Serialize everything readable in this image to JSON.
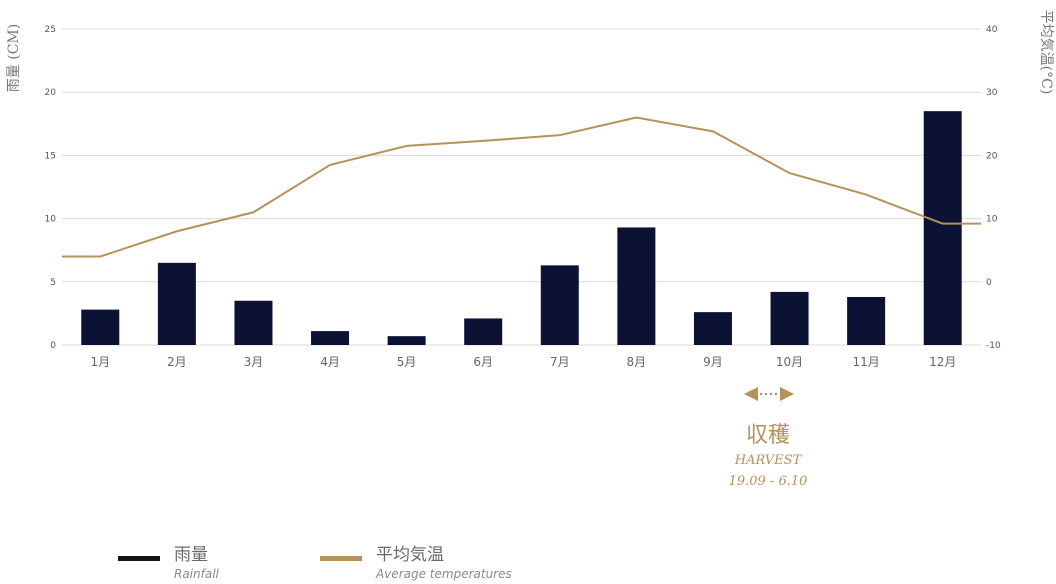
{
  "colors": {
    "bar": "#0b1233",
    "line": "#b5915c",
    "grid": "#d9d9d9",
    "tick": "#555555"
  },
  "chart_data": {
    "type": "bar+line",
    "categories": [
      "1月",
      "2月",
      "3月",
      "4月",
      "5月",
      "6月",
      "7月",
      "8月",
      "9月",
      "10月",
      "11月",
      "12月"
    ],
    "series": [
      {
        "name": "雨量",
        "axis": "left",
        "type": "bar",
        "values": [
          2.8,
          6.5,
          3.5,
          1.1,
          0.7,
          2.1,
          6.3,
          9.3,
          2.6,
          4.2,
          3.8,
          18.5
        ]
      },
      {
        "name": "平均気温",
        "axis": "right",
        "type": "line",
        "values": [
          4,
          8,
          11,
          18.5,
          21.5,
          22.3,
          23.2,
          26,
          23.8,
          17.2,
          13.8,
          9.2
        ]
      }
    ],
    "ylabel": "雨量 (CM)",
    "ylabel_right": "平均気温(°C)",
    "ylim": [
      0,
      25
    ],
    "ylim_right": [
      -10,
      40
    ],
    "yticks": [
      "0",
      "5",
      "10",
      "15",
      "20",
      "25"
    ],
    "yticks_right": [
      "-10",
      "0",
      "10",
      "20",
      "30",
      "40"
    ],
    "grid": true,
    "legend": "bottom-left"
  },
  "harvest": {
    "label_ja": "収穫",
    "label_en": "HARVEST",
    "dates": "19.09 - 6.10"
  },
  "legend": {
    "rainfall": {
      "ja": "雨量",
      "en": "Rainfall"
    },
    "temperature": {
      "ja": "平均気温",
      "en": "Average temperatures"
    }
  }
}
